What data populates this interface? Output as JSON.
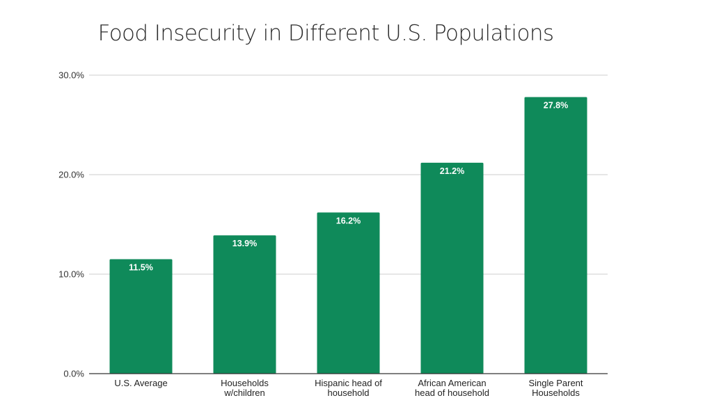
{
  "chart_data": {
    "type": "bar",
    "title": "Food Insecurity in Different U.S. Populations",
    "xlabel": "",
    "ylabel": "",
    "categories": [
      [
        "U.S. Average"
      ],
      [
        "Households",
        "w/children"
      ],
      [
        "Hispanic head of",
        "household"
      ],
      [
        "African American",
        "head of household"
      ],
      [
        "Single Parent",
        "Households"
      ]
    ],
    "values": [
      11.5,
      13.9,
      16.2,
      21.2,
      27.8
    ],
    "data_labels": [
      "11.5%",
      "13.9%",
      "16.2%",
      "21.2%",
      "27.8%"
    ],
    "ylim": [
      0,
      30
    ],
    "yticks": [
      0,
      10,
      20,
      30
    ],
    "ytick_labels": [
      "0.0%",
      "10.0%",
      "20.0%",
      "30.0%"
    ],
    "grid": true,
    "legend": "none",
    "bar_color": "#0f8a5a"
  }
}
